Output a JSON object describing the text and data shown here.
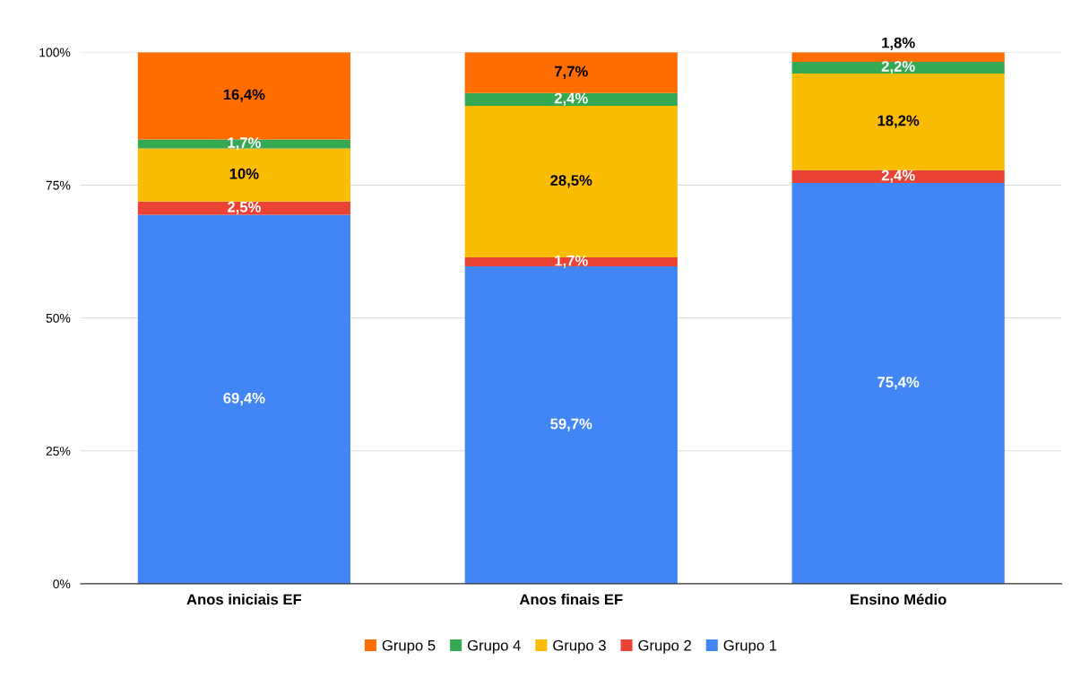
{
  "chart_data": {
    "type": "bar",
    "stacked": true,
    "categories": [
      "Anos iniciais EF",
      "Anos finais EF",
      "Ensino Médio"
    ],
    "series": [
      {
        "name": "Grupo 1",
        "color": "#4285f4",
        "values": [
          69.4,
          59.7,
          75.4
        ],
        "value_labels": [
          "69,4%",
          "59,7%",
          "75,4%"
        ]
      },
      {
        "name": "Grupo 2",
        "color": "#ea4335",
        "values": [
          2.5,
          1.7,
          2.4
        ],
        "value_labels": [
          "2,5%",
          "1,7%",
          "2,4%"
        ]
      },
      {
        "name": "Grupo 3",
        "color": "#fbbc04",
        "values": [
          10,
          28.5,
          18.2
        ],
        "value_labels": [
          "10%",
          "28,5%",
          "18,2%"
        ]
      },
      {
        "name": "Grupo 4",
        "color": "#34a853",
        "values": [
          1.7,
          2.4,
          2.2
        ],
        "value_labels": [
          "1,7%",
          "2,4%",
          "2,2%"
        ]
      },
      {
        "name": "Grupo 5",
        "color": "#ff6d01",
        "values": [
          16.4,
          7.7,
          1.8
        ],
        "value_labels": [
          "16,4%",
          "7,7%",
          "1,8%"
        ]
      }
    ],
    "ylim": [
      0,
      100
    ],
    "yticks": [
      {
        "value": 0,
        "label": "0%"
      },
      {
        "value": 25,
        "label": "25%"
      },
      {
        "value": 50,
        "label": "50%"
      },
      {
        "value": 75,
        "label": "75%"
      },
      {
        "value": 100,
        "label": "100%"
      }
    ],
    "grid": "y",
    "legend": "bottom"
  }
}
